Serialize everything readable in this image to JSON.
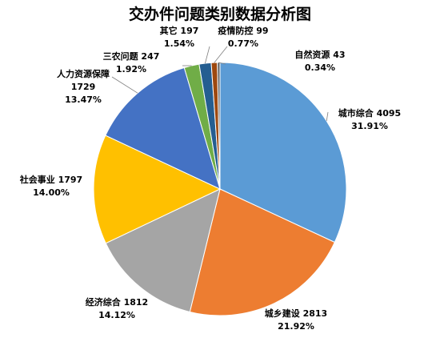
{
  "chart_data": {
    "type": "pie",
    "title": "交办件问题类别数据分析图",
    "slices": [
      {
        "name": "城市综合",
        "value": 4095,
        "percent": "31.91%",
        "color": "#5B9BD5"
      },
      {
        "name": "城乡建设",
        "value": 2813,
        "percent": "21.92%",
        "color": "#ED7D31"
      },
      {
        "name": "经济综合",
        "value": 1812,
        "percent": "14.12%",
        "color": "#A5A5A5"
      },
      {
        "name": "社会事业",
        "value": 1797,
        "percent": "14.00%",
        "color": "#FFC000"
      },
      {
        "name": "人力资源保障",
        "value": 1729,
        "percent": "13.47%",
        "color": "#4472C4"
      },
      {
        "name": "三农问题",
        "value": 247,
        "percent": "1.92%",
        "color": "#70AD47"
      },
      {
        "name": "其它",
        "value": 197,
        "percent": "1.54%",
        "color": "#255E91"
      },
      {
        "name": "疫情防控",
        "value": 99,
        "percent": "0.77%",
        "color": "#9E480E"
      },
      {
        "name": "自然资源",
        "value": 43,
        "percent": "0.34%",
        "color": "#636363"
      }
    ],
    "start_angle": "12 o'clock",
    "direction": "clockwise",
    "legend": "none",
    "data_labels": "outside with leader lines"
  }
}
